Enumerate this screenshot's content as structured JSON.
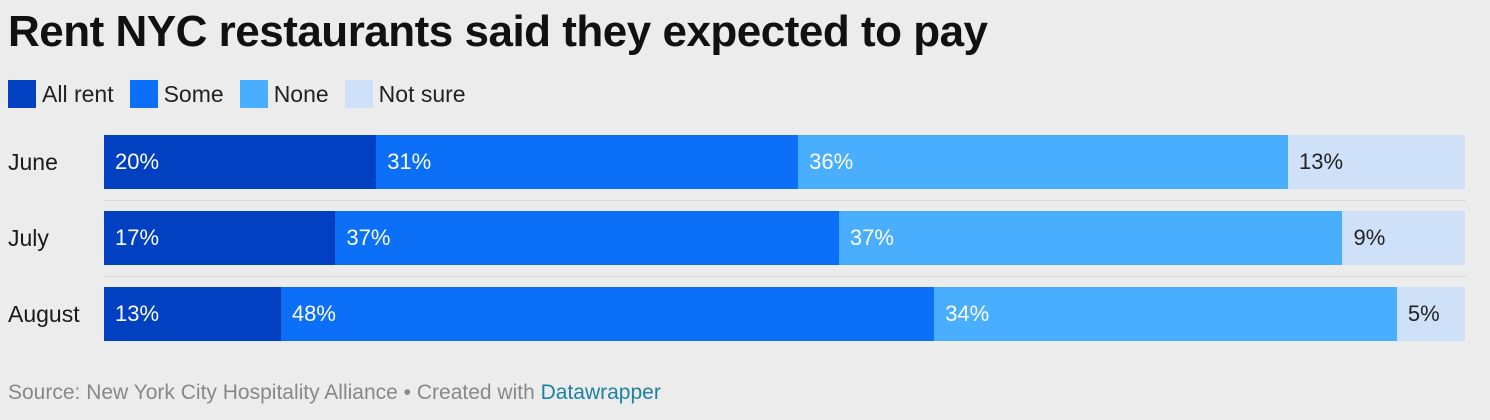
{
  "chart_data": {
    "type": "bar",
    "orientation": "horizontal",
    "stacked": true,
    "title": "Rent NYC restaurants said they expected to pay",
    "categories": [
      "June",
      "July",
      "August"
    ],
    "series": [
      {
        "name": "All rent",
        "values": [
          20,
          17,
          13
        ],
        "color": "#0040c1",
        "label_color": "#ffffff"
      },
      {
        "name": "Some",
        "values": [
          31,
          37,
          48
        ],
        "color": "#0b6ff7",
        "label_color": "#ffffff"
      },
      {
        "name": "None",
        "values": [
          36,
          37,
          34
        ],
        "color": "#4aaeff",
        "label_color": "#ffffff"
      },
      {
        "name": "Not sure",
        "values": [
          13,
          9,
          5
        ],
        "color": "#cfe1f9",
        "label_color": "#222222"
      }
    ],
    "value_suffix": "%",
    "legend_placement": "top-left",
    "xlim": [
      0,
      100
    ]
  },
  "footer": {
    "source_text": "Source: New York City Hospitality Alliance • Created with ",
    "link_text": "Datawrapper"
  }
}
